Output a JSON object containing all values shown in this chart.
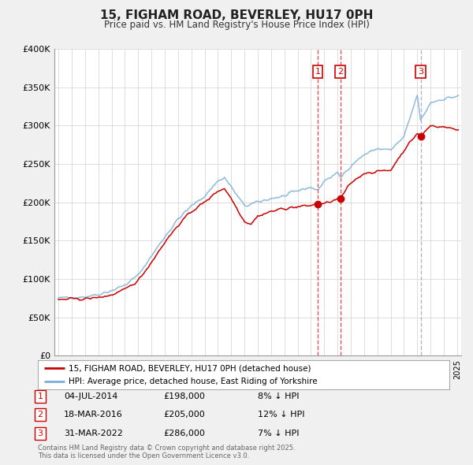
{
  "title": "15, FIGHAM ROAD, BEVERLEY, HU17 0PH",
  "subtitle": "Price paid vs. HM Land Registry's House Price Index (HPI)",
  "red_label": "15, FIGHAM ROAD, BEVERLEY, HU17 0PH (detached house)",
  "blue_label": "HPI: Average price, detached house, East Riding of Yorkshire",
  "sale_year_floats": [
    2014.5,
    2016.21,
    2022.25
  ],
  "sale_prices": [
    198000,
    205000,
    286000
  ],
  "sale_labels": [
    "1",
    "2",
    "3"
  ],
  "sale_info": [
    {
      "num": "1",
      "date": "04-JUL-2014",
      "price": "£198,000",
      "rel": "8% ↓ HPI"
    },
    {
      "num": "2",
      "date": "18-MAR-2016",
      "price": "£205,000",
      "rel": "12% ↓ HPI"
    },
    {
      "num": "3",
      "date": "31-MAR-2022",
      "price": "£286,000",
      "rel": "7% ↓ HPI"
    }
  ],
  "ylim": [
    0,
    400000
  ],
  "yticks": [
    0,
    50000,
    100000,
    150000,
    200000,
    250000,
    300000,
    350000,
    400000
  ],
  "ytick_labels": [
    "£0",
    "£50K",
    "£100K",
    "£150K",
    "£200K",
    "£250K",
    "£300K",
    "£350K",
    "£400K"
  ],
  "red_color": "#cc0000",
  "blue_color": "#7aaed6",
  "vline_color_12": "#dd4444",
  "vline_color_3": "#aaaacc",
  "footnote": "Contains HM Land Registry data © Crown copyright and database right 2025.\nThis data is licensed under the Open Government Licence v3.0.",
  "background_color": "#f0f0f0",
  "plot_bg_color": "#ffffff",
  "hpi_kx": [
    1995,
    1996,
    1997,
    1998,
    1999,
    2000,
    2001,
    2002,
    2003,
    2004,
    2005,
    2006,
    2007,
    2007.5,
    2008,
    2009,
    2010,
    2011,
    2012,
    2013,
    2014,
    2014.5,
    2015,
    2016,
    2016.21,
    2017,
    2018,
    2019,
    2020,
    2021,
    2022,
    2022.25,
    2023,
    2024,
    2025
  ],
  "hpi_ky": [
    75000,
    76000,
    77000,
    80000,
    85000,
    92000,
    105000,
    130000,
    155000,
    178000,
    195000,
    208000,
    228000,
    232000,
    220000,
    195000,
    200000,
    205000,
    208000,
    215000,
    220000,
    215000,
    228000,
    238000,
    232000,
    248000,
    262000,
    270000,
    268000,
    285000,
    340000,
    306000,
    330000,
    335000,
    338000
  ],
  "red_kx": [
    1995,
    1996,
    1997,
    1998,
    1999,
    2000,
    2001,
    2002,
    2003,
    2004,
    2005,
    2006,
    2007,
    2007.5,
    2008,
    2009,
    2009.5,
    2010,
    2011,
    2012,
    2013,
    2014,
    2014.5,
    2015,
    2016,
    2016.21,
    2017,
    2018,
    2019,
    2020,
    2021,
    2022,
    2022.25,
    2023,
    2024,
    2025
  ],
  "red_ky": [
    73000,
    74000,
    74000,
    76000,
    79000,
    86000,
    98000,
    122000,
    148000,
    170000,
    188000,
    200000,
    215000,
    218000,
    205000,
    175000,
    172000,
    182000,
    188000,
    192000,
    194000,
    196000,
    198000,
    198000,
    204000,
    205000,
    225000,
    238000,
    240000,
    242000,
    268000,
    290000,
    286000,
    300000,
    298000,
    295000
  ]
}
